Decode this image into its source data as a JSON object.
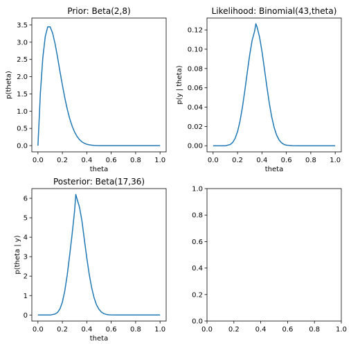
{
  "chart_data": [
    {
      "type": "line",
      "title": "Prior: Beta(2,8)",
      "xlabel": "theta",
      "ylabel": "p(theta)",
      "xlim": [
        -0.05,
        1.05
      ],
      "ylim": [
        -0.18,
        3.7
      ],
      "xticks": [
        0.0,
        0.2,
        0.4,
        0.6,
        0.8,
        1.0
      ],
      "xtick_labels": [
        "0.0",
        "0.2",
        "0.4",
        "0.6",
        "0.8",
        "1.0"
      ],
      "yticks": [
        0.0,
        0.5,
        1.0,
        1.5,
        2.0,
        2.5,
        3.0,
        3.5
      ],
      "ytick_labels": [
        "0.0",
        "0.5",
        "1.0",
        "1.5",
        "2.0",
        "2.5",
        "3.0",
        "3.5"
      ],
      "series": [
        {
          "color": "#1f77b4",
          "x": [
            0.0,
            0.02,
            0.04,
            0.06,
            0.08,
            0.1,
            0.12,
            0.14,
            0.16,
            0.18,
            0.2,
            0.22,
            0.24,
            0.26,
            0.28,
            0.3,
            0.32,
            0.34,
            0.36,
            0.38,
            0.4,
            0.42,
            0.44,
            0.46,
            0.48,
            0.5,
            0.52,
            0.54,
            0.56,
            0.58,
            0.6,
            0.62,
            0.64,
            0.66,
            0.68,
            0.7,
            0.72,
            0.74,
            0.76,
            0.78,
            0.8,
            0.82,
            0.84,
            0.86,
            0.88,
            0.9,
            0.92,
            0.94,
            0.96,
            0.98,
            1.0
          ],
          "y": [
            0.0,
            1.531,
            2.554,
            3.167,
            3.446,
            3.443,
            3.264,
            2.959,
            2.574,
            2.157,
            1.758,
            1.384,
            1.058,
            0.784,
            0.566,
            0.395,
            0.268,
            0.176,
            0.112,
            0.069,
            0.04,
            0.023,
            0.013,
            0.007,
            0.003,
            0.001,
            0.0,
            0.0,
            0.0,
            0.0,
            0.0,
            0.0,
            0.0,
            0.0,
            0.0,
            0.0,
            0.0,
            0.0,
            0.0,
            0.0,
            0.0,
            0.0,
            0.0,
            0.0,
            0.0,
            0.0,
            0.0,
            0.0,
            0.0,
            0.0,
            0.0
          ]
        }
      ]
    },
    {
      "type": "line",
      "title": "Likelihood: Binomial(43,theta)",
      "xlabel": "theta",
      "ylabel": "p(y | theta)",
      "xlim": [
        -0.05,
        1.05
      ],
      "ylim": [
        -0.0063,
        0.1323
      ],
      "xticks": [
        0.0,
        0.2,
        0.4,
        0.6,
        0.8,
        1.0
      ],
      "xtick_labels": [
        "0.0",
        "0.2",
        "0.4",
        "0.6",
        "0.8",
        "1.0"
      ],
      "yticks": [
        0.0,
        0.02,
        0.04,
        0.06,
        0.08,
        0.1,
        0.12
      ],
      "ytick_labels": [
        "0.00",
        "0.02",
        "0.04",
        "0.06",
        "0.08",
        "0.10",
        "0.12"
      ],
      "series": [
        {
          "color": "#1f77b4",
          "x": [
            0.0,
            0.1,
            0.14,
            0.16,
            0.18,
            0.2,
            0.22,
            0.24,
            0.26,
            0.28,
            0.3,
            0.32,
            0.34,
            0.35,
            0.36,
            0.38,
            0.4,
            0.42,
            0.44,
            0.46,
            0.48,
            0.5,
            0.52,
            0.54,
            0.56,
            0.58,
            0.6,
            0.65,
            0.7,
            1.0
          ],
          "y": [
            0.0,
            0.0,
            0.0013,
            0.0034,
            0.0075,
            0.0146,
            0.0253,
            0.0398,
            0.0573,
            0.0762,
            0.0944,
            0.1094,
            0.1187,
            0.1264,
            0.123,
            0.1129,
            0.0979,
            0.08,
            0.0615,
            0.0443,
            0.0299,
            0.0189,
            0.0111,
            0.0061,
            0.0031,
            0.0014,
            0.0006,
            0.0001,
            0.0,
            0.0
          ]
        }
      ]
    },
    {
      "type": "line",
      "title": "Posterior: Beta(17,36)",
      "xlabel": "theta",
      "ylabel": "p(theta | y)",
      "xlim": [
        -0.05,
        1.05
      ],
      "ylim": [
        -0.31,
        6.5
      ],
      "xticks": [
        0.0,
        0.2,
        0.4,
        0.6,
        0.8,
        1.0
      ],
      "xtick_labels": [
        "0.0",
        "0.2",
        "0.4",
        "0.6",
        "0.8",
        "1.0"
      ],
      "yticks": [
        0,
        1,
        2,
        3,
        4,
        5,
        6
      ],
      "ytick_labels": [
        "0",
        "1",
        "2",
        "3",
        "4",
        "5",
        "6"
      ],
      "series": [
        {
          "color": "#1f77b4",
          "x": [
            0.0,
            0.1,
            0.14,
            0.16,
            0.18,
            0.2,
            0.22,
            0.24,
            0.26,
            0.28,
            0.3,
            0.31,
            0.32,
            0.34,
            0.36,
            0.38,
            0.4,
            0.42,
            0.44,
            0.46,
            0.48,
            0.5,
            0.52,
            0.54,
            0.56,
            0.58,
            0.6,
            0.65,
            0.7,
            1.0
          ],
          "y": [
            0.0,
            0.0,
            0.05,
            0.13,
            0.31,
            0.66,
            1.25,
            2.07,
            3.09,
            4.16,
            5.35,
            6.2,
            5.97,
            5.55,
            4.85,
            3.88,
            2.94,
            2.09,
            1.4,
            0.88,
            0.52,
            0.29,
            0.15,
            0.07,
            0.03,
            0.01,
            0.005,
            0.0,
            0.0,
            0.0
          ]
        }
      ]
    },
    {
      "type": "line",
      "title": "",
      "xlabel": "",
      "ylabel": "",
      "xlim": [
        0.0,
        1.0
      ],
      "ylim": [
        0.0,
        1.0
      ],
      "xticks": [
        0.0,
        0.2,
        0.4,
        0.6,
        0.8,
        1.0
      ],
      "xtick_labels": [
        "0.0",
        "0.2",
        "0.4",
        "0.6",
        "0.8",
        "1.0"
      ],
      "yticks": [
        0.0,
        0.2,
        0.4,
        0.6,
        0.8,
        1.0
      ],
      "ytick_labels": [
        "0.0",
        "0.2",
        "0.4",
        "0.6",
        "0.8",
        "1.0"
      ],
      "series": []
    }
  ]
}
